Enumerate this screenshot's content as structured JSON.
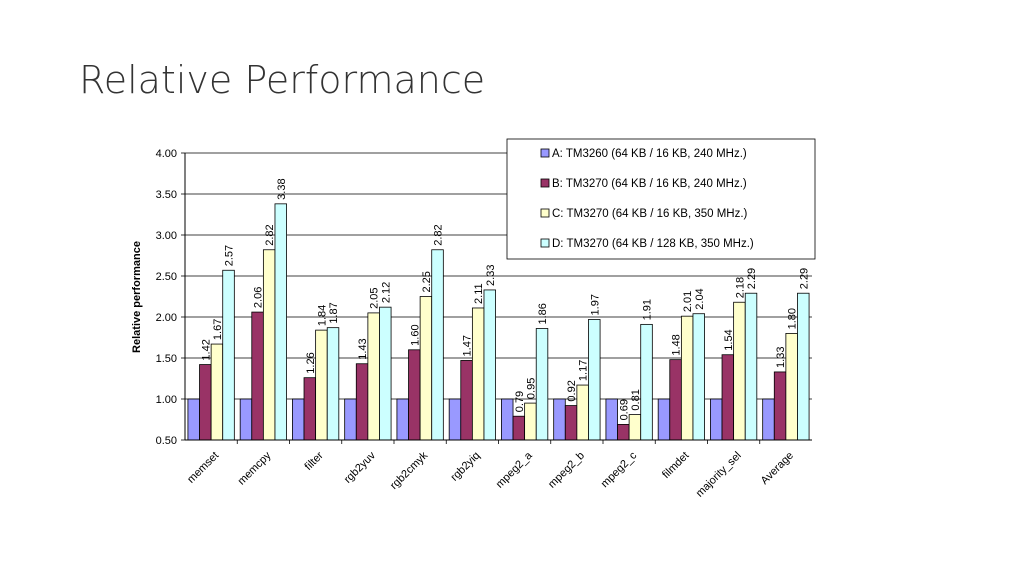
{
  "slide": {
    "title": "Relative Performance"
  },
  "chart_data": {
    "type": "bar",
    "title": "",
    "xlabel": "",
    "ylabel": "Relative performance",
    "ylim": [
      0.5,
      4.0
    ],
    "yticks": [
      0.5,
      1.0,
      1.5,
      2.0,
      2.5,
      3.0,
      3.5,
      4.0
    ],
    "ytick_labels": [
      "0.50",
      "1.00",
      "1.50",
      "2.00",
      "2.50",
      "3.00",
      "3.50",
      "4.00"
    ],
    "grid": true,
    "legend_position": "top-right",
    "categories": [
      "memset",
      "memcpy",
      "filter",
      "rgb2yuv",
      "rgb2cmyk",
      "rgb2yiq",
      "mpeg2_a",
      "mpeg2_b",
      "mpeg2_c",
      "filmdet",
      "majority_sel",
      "Average"
    ],
    "series": [
      {
        "name": "A: TM3260 (64 KB / 16 KB, 240 MHz.)",
        "color": "#9999ff",
        "values": [
          1.0,
          1.0,
          1.0,
          1.0,
          1.0,
          1.0,
          1.0,
          1.0,
          1.0,
          1.0,
          1.0,
          1.0
        ],
        "labels": []
      },
      {
        "name": "B: TM3270 (64 KB / 16 KB, 240 MHz.)",
        "color": "#993366",
        "values": [
          1.42,
          2.06,
          1.26,
          1.43,
          1.6,
          1.47,
          0.79,
          0.92,
          0.69,
          1.48,
          1.54,
          1.33
        ],
        "labels": [
          "1.42",
          "2.06",
          "1.26",
          "1.43",
          "1.60",
          "1.47",
          "0.79",
          "0.92",
          "0.69",
          "1.48",
          "1.54",
          "1.33"
        ]
      },
      {
        "name": "C: TM3270 (64 KB / 16 KB, 350 MHz.)",
        "color": "#ffffcc",
        "values": [
          1.67,
          2.82,
          1.84,
          2.05,
          2.25,
          2.11,
          0.95,
          1.17,
          0.81,
          2.01,
          2.18,
          1.8
        ],
        "labels": [
          "1.67",
          "2.82",
          "1.84",
          "2.05",
          "2.25",
          "2.11",
          "0.95",
          "1.17",
          "0.81",
          "2.01",
          "2.18",
          "1.80"
        ]
      },
      {
        "name": "D: TM3270 (64 KB / 128 KB, 350 MHz.)",
        "color": "#ccffff",
        "values": [
          2.57,
          3.38,
          1.87,
          2.12,
          2.82,
          2.33,
          1.86,
          1.97,
          1.91,
          2.04,
          2.29,
          2.29
        ],
        "labels": [
          "2.57",
          "3.38",
          "1.87",
          "2.12",
          "2.82",
          "2.33",
          "1.86",
          "1.97",
          "1.91",
          "2.04",
          "2.29",
          "2.29"
        ]
      }
    ]
  }
}
